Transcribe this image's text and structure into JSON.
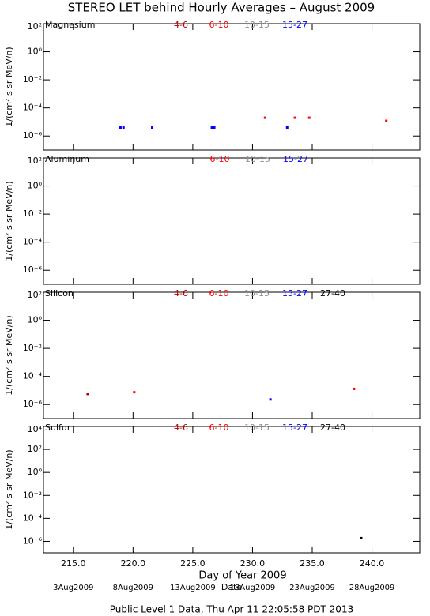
{
  "title": "STEREO LET behind Hourly Averages – August 2009",
  "chart_data": [
    {
      "type": "scatter",
      "title": "Magnesium",
      "ylabel": "1/(cm² s sr MeV/n)",
      "log_y": true,
      "xlim": [
        212.5,
        244
      ],
      "xticks": [
        215,
        220,
        225,
        230,
        235,
        240
      ],
      "ylim": [
        1e-07,
        100
      ],
      "yticks": [
        {
          "value": 100,
          "label": "10²"
        },
        {
          "value": 1,
          "label": "10⁰"
        },
        {
          "value": 0.01,
          "label": "10⁻²"
        },
        {
          "value": 0.0001,
          "label": "10⁻⁴"
        },
        {
          "value": 1e-06,
          "label": "10⁻⁶"
        }
      ],
      "series": [
        {
          "name": "4-6",
          "color": "#b00000",
          "x": [],
          "values": []
        },
        {
          "name": "6-10",
          "color": "#ff0000",
          "x": [
            231.05,
            233.55,
            234.75,
            241.2
          ],
          "values": [
            2e-05,
            2e-05,
            2e-05,
            1.2e-05
          ]
        },
        {
          "name": "10-15",
          "color": "#909090",
          "x": [],
          "values": []
        },
        {
          "name": "15-27",
          "color": "#0000ff",
          "x": [
            218.95,
            219.2,
            221.6,
            226.6,
            226.8,
            232.9
          ],
          "values": [
            4e-06,
            4e-06,
            4e-06,
            4e-06,
            4e-06,
            4e-06
          ]
        }
      ]
    },
    {
      "type": "scatter",
      "title": "Aluminum",
      "ylabel": "1/(cm² s sr MeV/n)",
      "log_y": true,
      "xlim": [
        212.5,
        244
      ],
      "xticks": [
        215,
        220,
        225,
        230,
        235,
        240
      ],
      "ylim": [
        1e-07,
        100
      ],
      "yticks": [
        {
          "value": 100,
          "label": "10²"
        },
        {
          "value": 1,
          "label": "10⁰"
        },
        {
          "value": 0.01,
          "label": "10⁻²"
        },
        {
          "value": 0.0001,
          "label": "10⁻⁴"
        },
        {
          "value": 1e-06,
          "label": "10⁻⁶"
        }
      ],
      "series": [
        {
          "name": "6-10",
          "color": "#ff0000",
          "x": [],
          "values": []
        },
        {
          "name": "10-15",
          "color": "#909090",
          "x": [],
          "values": []
        },
        {
          "name": "15-27",
          "color": "#0000ff",
          "x": [],
          "values": []
        }
      ]
    },
    {
      "type": "scatter",
      "title": "Silicon",
      "ylabel": "1/(cm² s sr MeV/n)",
      "log_y": true,
      "xlim": [
        212.5,
        244
      ],
      "xticks": [
        215,
        220,
        225,
        230,
        235,
        240
      ],
      "ylim": [
        1e-07,
        100
      ],
      "yticks": [
        {
          "value": 100,
          "label": "10²"
        },
        {
          "value": 1,
          "label": "10⁰"
        },
        {
          "value": 0.01,
          "label": "10⁻²"
        },
        {
          "value": 0.0001,
          "label": "10⁻⁴"
        },
        {
          "value": 1e-06,
          "label": "10⁻⁶"
        }
      ],
      "series": [
        {
          "name": "4-6",
          "color": "#b00000",
          "x": [
            216.2
          ],
          "values": [
            5.6e-06
          ]
        },
        {
          "name": "6-10",
          "color": "#ff0000",
          "x": [
            220.1,
            238.5
          ],
          "values": [
            7.5e-06,
            1.3e-05
          ]
        },
        {
          "name": "10-15",
          "color": "#909090",
          "x": [],
          "values": []
        },
        {
          "name": "15-27",
          "color": "#0000ff",
          "x": [
            231.5
          ],
          "values": [
            2.3e-06
          ]
        },
        {
          "name": "27-40",
          "color": "#000000",
          "x": [],
          "values": []
        }
      ]
    },
    {
      "type": "scatter",
      "title": "Sulfur",
      "ylabel": "1/(cm² s sr MeV/n)",
      "log_y": true,
      "xlim": [
        212.5,
        244
      ],
      "xticks": [
        {
          "value": 215,
          "label": "215.0"
        },
        {
          "value": 220,
          "label": "220.0"
        },
        {
          "value": 225,
          "label": "225.0"
        },
        {
          "value": 230,
          "label": "230.0"
        },
        {
          "value": 235,
          "label": "235.0"
        },
        {
          "value": 240,
          "label": "240.0"
        }
      ],
      "ylim": [
        1e-07,
        10000
      ],
      "yticks": [
        {
          "value": 10000,
          "label": "10⁴"
        },
        {
          "value": 100,
          "label": "10²"
        },
        {
          "value": 1,
          "label": "10⁰"
        },
        {
          "value": 0.01,
          "label": "10⁻²"
        },
        {
          "value": 0.0001,
          "label": "10⁻⁴"
        },
        {
          "value": 1e-06,
          "label": "10⁻⁶"
        }
      ],
      "xlabel": "Day of Year 2009",
      "series": [
        {
          "name": "4-6",
          "color": "#b00000",
          "x": [],
          "values": []
        },
        {
          "name": "6-10",
          "color": "#ff0000",
          "x": [],
          "values": []
        },
        {
          "name": "10-15",
          "color": "#909090",
          "x": [],
          "values": []
        },
        {
          "name": "15-27",
          "color": "#0000ff",
          "x": [],
          "values": []
        },
        {
          "name": "27-40",
          "color": "#000000",
          "x": [
            239.1
          ],
          "values": [
            1.9e-06
          ]
        }
      ]
    }
  ],
  "date_axis": {
    "label": "Date",
    "ticks": [
      {
        "value": 215,
        "label": "3Aug2009"
      },
      {
        "value": 220,
        "label": "8Aug2009"
      },
      {
        "value": 225,
        "label": "13Aug2009"
      },
      {
        "value": 230,
        "label": "18Aug2009"
      },
      {
        "value": 235,
        "label": "23Aug2009"
      },
      {
        "value": 240,
        "label": "28Aug2009"
      }
    ]
  },
  "footer": "Public Level 1 Data, Thu Apr 11 22:05:58 PDT 2013"
}
